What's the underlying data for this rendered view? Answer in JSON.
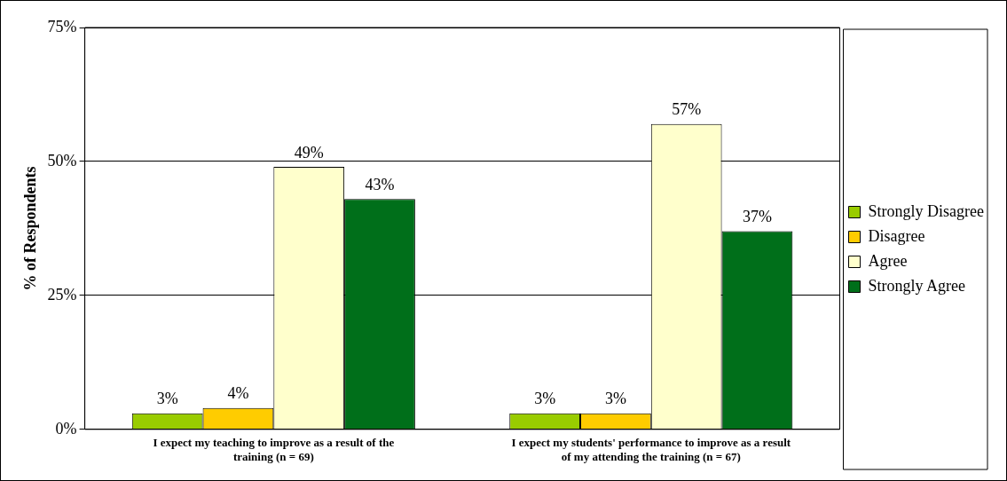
{
  "chart_data": {
    "type": "bar",
    "ylabel": "% of Respondents",
    "categories": [
      "I expect my teaching to improve as a result of the training (n = 69)",
      "I expect my students' performance to improve as a result of my attending the training (n = 67)"
    ],
    "series": [
      {
        "name": "Strongly Disagree",
        "color": "#99cc00",
        "values": [
          3,
          3
        ],
        "value_labels": [
          "3%",
          "3%"
        ]
      },
      {
        "name": "Disagree",
        "color": "#ffcc00",
        "values": [
          4,
          3
        ],
        "value_labels": [
          "4%",
          "3%"
        ]
      },
      {
        "name": "Agree",
        "color": "#ffffcc",
        "values": [
          49,
          57
        ],
        "value_labels": [
          "49%",
          "57%"
        ]
      },
      {
        "name": "Strongly Agree",
        "color": "#006f1a",
        "values": [
          43,
          37
        ],
        "value_labels": [
          "43%",
          "37%"
        ]
      }
    ],
    "ylim": [
      0,
      75
    ],
    "yticks": [
      {
        "value": 0,
        "label": "0%"
      },
      {
        "value": 25,
        "label": "25%"
      },
      {
        "value": 50,
        "label": "50%"
      },
      {
        "value": 75,
        "label": "75%"
      }
    ],
    "grid": "y",
    "legend": "right"
  }
}
